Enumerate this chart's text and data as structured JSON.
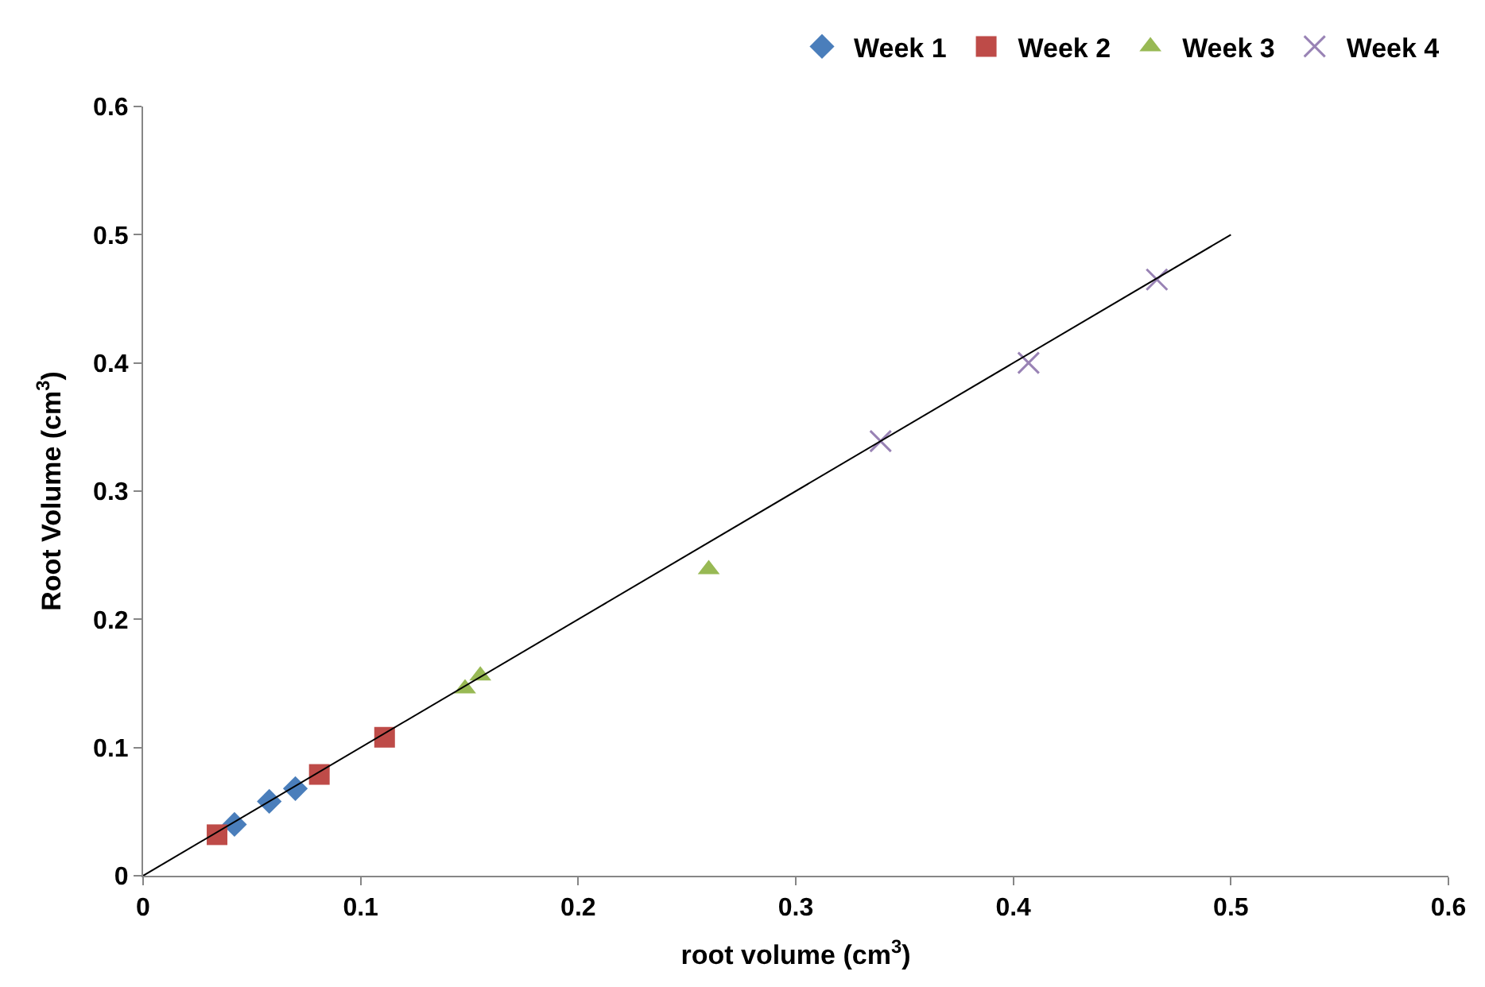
{
  "chart_data": {
    "type": "scatter",
    "xlabel": "root volume (cm$^{3}$)",
    "ylabel": "Root Volume (cm$^{3}$)",
    "xlim": [
      0,
      0.6
    ],
    "ylim": [
      0,
      0.6
    ],
    "xticks": [
      0,
      0.1,
      0.2,
      0.3,
      0.4,
      0.5,
      0.6
    ],
    "yticks": [
      0,
      0.1,
      0.2,
      0.3,
      0.4,
      0.5,
      0.6
    ],
    "legend": "top right",
    "series": [
      {
        "name": "Week 1",
        "color": "#4a7ebb",
        "marker": "diamond",
        "x": [
          0.042,
          0.058,
          0.07
        ],
        "values": [
          0.04,
          0.058,
          0.068
        ]
      },
      {
        "name": "Week 2",
        "color": "#be4b48",
        "marker": "square",
        "x": [
          0.034,
          0.081,
          0.111
        ],
        "values": [
          0.032,
          0.079,
          0.108
        ]
      },
      {
        "name": "Week 3",
        "color": "#98b954",
        "marker": "triangle",
        "x": [
          0.148,
          0.155,
          0.26
        ],
        "values": [
          0.146,
          0.156,
          0.239
        ]
      },
      {
        "name": "Week 4",
        "color": "#9983b5",
        "marker": "cross",
        "x": [
          0.339,
          0.407,
          0.466
        ],
        "values": [
          0.339,
          0.4,
          0.465
        ]
      },
      {
        "type": "line",
        "color": "#000000",
        "marker": "none",
        "x": [
          0,
          0.5
        ],
        "values": [
          0,
          0.5
        ]
      }
    ]
  }
}
